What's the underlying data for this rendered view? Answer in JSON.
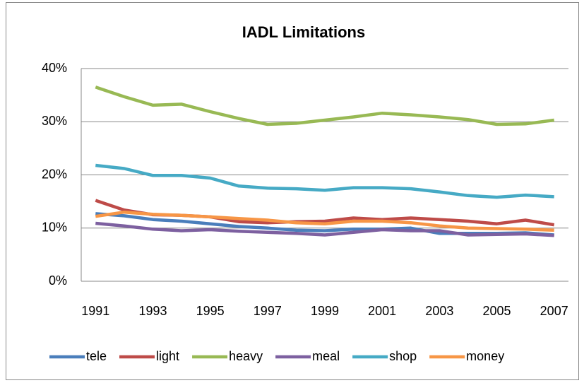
{
  "chart_data": {
    "type": "line",
    "title": "IADL Limitations",
    "categories": [
      "1991",
      null,
      "1993",
      null,
      "1995",
      null,
      "1997",
      null,
      "1999",
      null,
      "2001",
      null,
      "2003",
      null,
      "2005",
      null,
      "2007"
    ],
    "ylim": [
      0,
      40
    ],
    "yticks": [
      {
        "value": 0,
        "label": "0%"
      },
      {
        "value": 10,
        "label": "10%"
      },
      {
        "value": 20,
        "label": "20%"
      },
      {
        "value": 30,
        "label": "30%"
      },
      {
        "value": 40,
        "label": "40%"
      }
    ],
    "grid": true,
    "legend": "bottom",
    "series": [
      {
        "name": "tele",
        "color": "#4a7ebb",
        "values": [
          12.7,
          12.3,
          11.6,
          11.3,
          10.8,
          10.3,
          10.0,
          9.6,
          9.5,
          9.8,
          9.8,
          10.0,
          9.0,
          9.0,
          9.0,
          9.1,
          8.7
        ]
      },
      {
        "name": "light",
        "color": "#be4b48",
        "values": [
          15.2,
          13.4,
          12.5,
          12.4,
          12.1,
          11.2,
          11.0,
          11.2,
          11.3,
          11.9,
          11.6,
          11.9,
          11.6,
          11.3,
          10.8,
          11.5,
          10.6
        ]
      },
      {
        "name": "heavy",
        "color": "#98b954",
        "values": [
          36.5,
          34.7,
          33.1,
          33.3,
          31.9,
          30.6,
          29.5,
          29.7,
          30.3,
          30.9,
          31.6,
          31.3,
          30.9,
          30.4,
          29.5,
          29.6,
          30.3
        ]
      },
      {
        "name": "meal",
        "color": "#7d60a0",
        "values": [
          10.9,
          10.4,
          9.8,
          9.5,
          9.7,
          9.4,
          9.2,
          9.0,
          8.7,
          9.2,
          9.7,
          9.5,
          9.5,
          8.7,
          8.8,
          8.9,
          8.6
        ]
      },
      {
        "name": "shop",
        "color": "#46aac5",
        "values": [
          21.8,
          21.2,
          19.9,
          19.9,
          19.4,
          17.9,
          17.5,
          17.4,
          17.1,
          17.6,
          17.6,
          17.4,
          16.8,
          16.1,
          15.8,
          16.2,
          15.9
        ]
      },
      {
        "name": "money",
        "color": "#f79646",
        "values": [
          12.2,
          13.0,
          12.6,
          12.4,
          12.1,
          11.8,
          11.5,
          11.0,
          10.8,
          11.3,
          11.3,
          11.0,
          10.4,
          10.0,
          9.9,
          9.8,
          9.6
        ]
      }
    ]
  }
}
